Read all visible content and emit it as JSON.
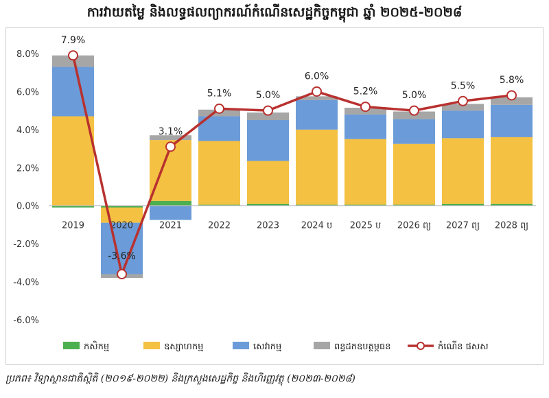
{
  "title": "ការវាយតម្លៃ និងលទ្ធផលព្យាករណ៍កំណើនសេដ្ឋកិច្ចកម្ពុជា ឆ្នាំ ២០២៥-២០២៨",
  "source": "ប្រភព៖ វិទ្យាស្ថានជាតិស្ថិតិ (២០១៩-២០២២) និងក្រសួងសេដ្ឋកិច្ច និងហិរញ្ញវត្ថុ (២០២៣-២០២៨)",
  "chart_data": {
    "type": "bar",
    "stacked": true,
    "categories": [
      "2019",
      "2020",
      "2021",
      "2022",
      "2023",
      "2024 ប",
      "2025 ប",
      "2026 ព្យ",
      "2027 ព្យ",
      "2028 ព្យ"
    ],
    "ylim": [
      -6.0,
      8.0
    ],
    "yticks": [
      "8.0%",
      "6.0%",
      "4.0%",
      "2.0%",
      "0.0%",
      "-2.0%",
      "-4.0%",
      "-6.0%"
    ],
    "ytick_values": [
      8,
      6,
      4,
      2,
      0,
      -2,
      -4,
      -6
    ],
    "grid": false,
    "legend_position": "bottom",
    "series": [
      {
        "name": "កសិកម្ម",
        "kind": "bar",
        "color": "#4caf50",
        "values": [
          -0.1,
          -0.1,
          0.25,
          0.05,
          0.1,
          0.05,
          0.05,
          0.05,
          0.1,
          0.1
        ]
      },
      {
        "name": "ឧស្សាហកម្ម",
        "kind": "bar",
        "color": "#f4c142",
        "values": [
          4.7,
          -0.8,
          3.2,
          3.35,
          2.25,
          3.95,
          3.45,
          3.2,
          3.45,
          3.5
        ]
      },
      {
        "name": "សេវាកម្ម",
        "kind": "bar",
        "color": "#6b9bd8",
        "values": [
          2.6,
          -2.7,
          -0.75,
          1.3,
          2.15,
          1.55,
          1.3,
          1.3,
          1.45,
          1.7
        ]
      },
      {
        "name": "ពន្ធដកឧបត្ថម្ភធន",
        "kind": "bar",
        "color": "#a6a6a6",
        "values": [
          0.6,
          -0.2,
          0.25,
          0.35,
          0.4,
          0.2,
          0.35,
          0.4,
          0.35,
          0.4
        ]
      },
      {
        "name": "កំណើន ផសស",
        "kind": "line",
        "color": "#b8312f",
        "values": [
          7.9,
          -3.6,
          3.1,
          5.1,
          5.0,
          6.0,
          5.2,
          5.0,
          5.5,
          5.8
        ],
        "labels": [
          "7.9%",
          "-3.6%",
          "3.1%",
          "5.1%",
          "5.0%",
          "6.0%",
          "5.2%",
          "5.0%",
          "5.5%",
          "5.8%"
        ]
      }
    ]
  }
}
